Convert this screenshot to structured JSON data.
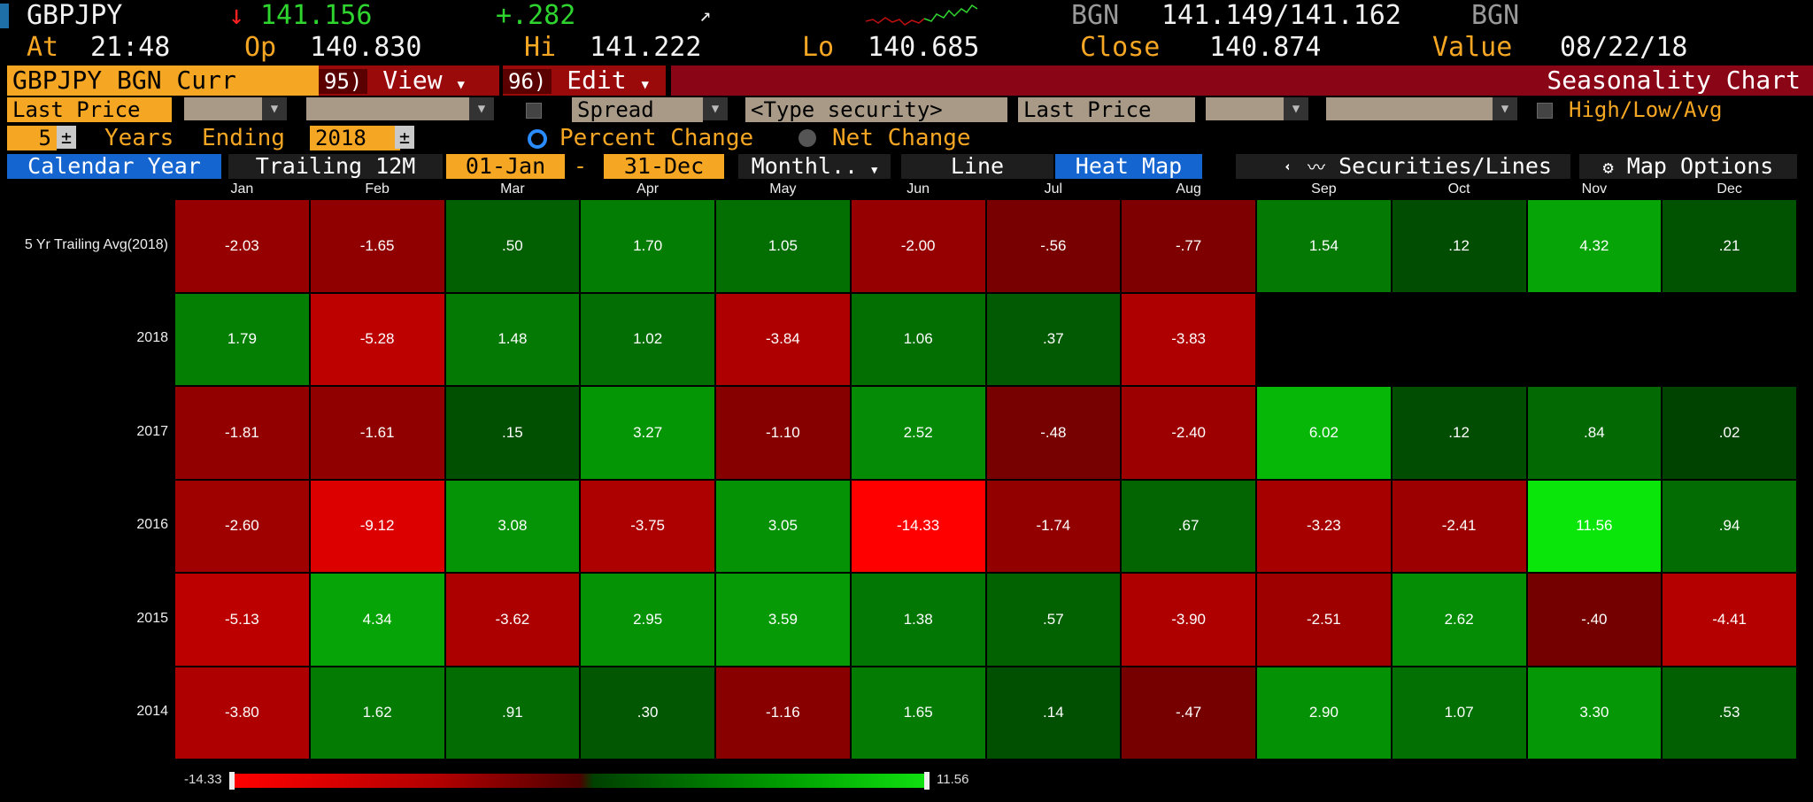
{
  "header": {
    "ticker": "GBPJPY",
    "arrow": "↓",
    "price": "141.156",
    "change": "+.282",
    "bid_src": "BGN",
    "bid_ask": "141.149/141.162",
    "ask_src": "BGN",
    "at_label": "At",
    "at_value": "21:48",
    "op_label": "Op",
    "op_value": "140.830",
    "hi_label": "Hi",
    "hi_value": "141.222",
    "lo_label": "Lo",
    "lo_value": "140.685",
    "close_label": "Close",
    "close_value": "140.874",
    "value_label": "Value",
    "value_date": "08/22/18"
  },
  "toolbar": {
    "security": "GBPJPY BGN Curr",
    "view_num": "95)",
    "view_label": "View",
    "edit_num": "96)",
    "edit_label": "Edit",
    "title": "Seasonality Chart"
  },
  "options": {
    "field1": "Last Price",
    "spread": "Spread",
    "type_security": "<Type security>",
    "field2": "Last Price",
    "high_low_avg": "High/Low/Avg",
    "years_count": "5",
    "years_label": "Years",
    "ending_label": "Ending",
    "ending_year": "2018",
    "percent_change": "Percent Change",
    "net_change": "Net Change"
  },
  "controls": {
    "calendar_year": "Calendar Year",
    "trailing": "Trailing 12M",
    "start": "01-Jan",
    "dash": "-",
    "end": "31-Dec",
    "period": "Monthl..",
    "line": "Line",
    "heat_map": "Heat Map",
    "collapse": "«",
    "securities_lines": "Securities/Lines",
    "map_options": "Map Options"
  },
  "icons": {
    "up_arrow": "↗",
    "dropdown": "▼",
    "spin": "±"
  },
  "colors": {
    "accent_orange": "#f5a623",
    "title_red": "#8a0616",
    "active_blue": "#1565d0",
    "min_red": "#ff0000",
    "max_green": "#10e010"
  },
  "chart_data": {
    "type": "heatmap",
    "columns": [
      "Jan",
      "Feb",
      "Mar",
      "Apr",
      "May",
      "Jun",
      "Jul",
      "Aug",
      "Sep",
      "Oct",
      "Nov",
      "Dec"
    ],
    "rows": [
      {
        "label": "5 Yr Trailing Avg(2018)",
        "values": [
          "-2.03",
          "-1.65",
          ".50",
          "1.70",
          "1.05",
          "-2.00",
          "-.56",
          "-.77",
          "1.54",
          ".12",
          "4.32",
          ".21"
        ]
      },
      {
        "label": "2018",
        "values": [
          "1.79",
          "-5.28",
          "1.48",
          "1.02",
          "-3.84",
          "1.06",
          ".37",
          "-3.83",
          null,
          null,
          null,
          null
        ]
      },
      {
        "label": "2017",
        "values": [
          "-1.81",
          "-1.61",
          ".15",
          "3.27",
          "-1.10",
          "2.52",
          "-.48",
          "-2.40",
          "6.02",
          ".12",
          ".84",
          ".02"
        ]
      },
      {
        "label": "2016",
        "values": [
          "-2.60",
          "-9.12",
          "3.08",
          "-3.75",
          "3.05",
          "-14.33",
          "-1.74",
          ".67",
          "-3.23",
          "-2.41",
          "11.56",
          ".94"
        ]
      },
      {
        "label": "2015",
        "values": [
          "-5.13",
          "4.34",
          "-3.62",
          "2.95",
          "3.59",
          "1.38",
          ".57",
          "-3.90",
          "-2.51",
          "2.62",
          "-.40",
          "-4.41"
        ]
      },
      {
        "label": "2014",
        "values": [
          "-3.80",
          "1.62",
          ".91",
          ".30",
          "-1.16",
          "1.65",
          ".14",
          "-.47",
          "2.90",
          "1.07",
          "3.30",
          ".53"
        ]
      }
    ],
    "scale_min": "-14.33",
    "scale_max": "11.56"
  }
}
